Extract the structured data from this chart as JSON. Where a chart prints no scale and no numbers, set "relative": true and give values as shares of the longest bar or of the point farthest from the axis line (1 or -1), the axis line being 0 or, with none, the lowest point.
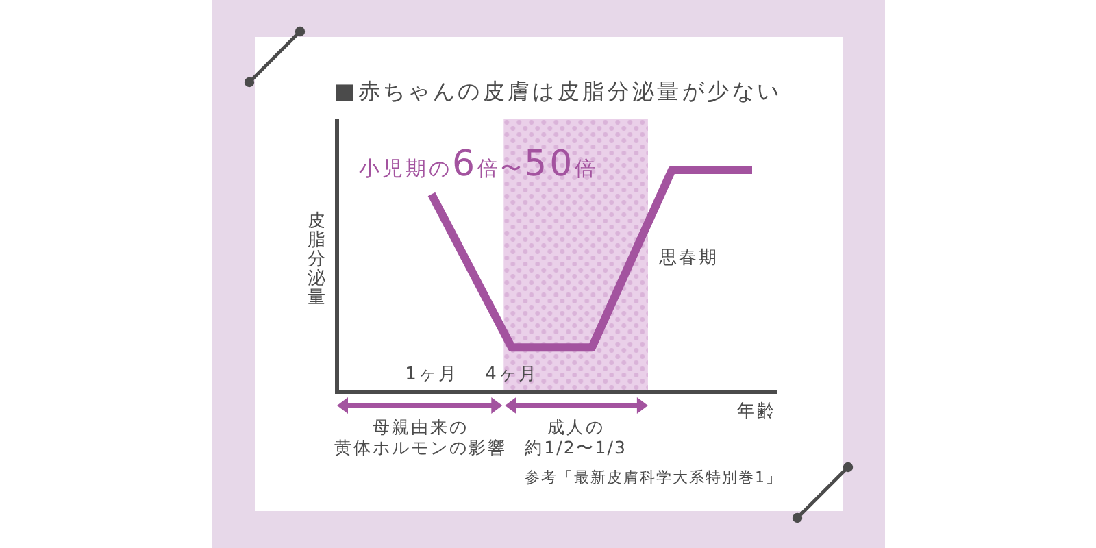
{
  "chart_data": {
    "type": "line",
    "title": "■赤ちゃんの皮膚は皮脂分泌量が少ない",
    "ylabel": "皮脂分泌量",
    "xlabel": "年齢",
    "categories": [
      "1ヶ月",
      "4ヶ月",
      null,
      null,
      null
    ],
    "relative": true,
    "line_style": "solid",
    "series": [
      {
        "color": "#a3539f",
        "values": [
          0.89,
          0.2,
          0.2,
          1,
          1
        ]
      }
    ],
    "annotations": [
      "小児期の6倍〜50倍",
      "思春期",
      "母親由来の",
      "黄体ホルモンの影響",
      "成人の",
      "約1/2〜1/3",
      "参考「最新皮膚科学大系特別巻1」"
    ]
  }
}
